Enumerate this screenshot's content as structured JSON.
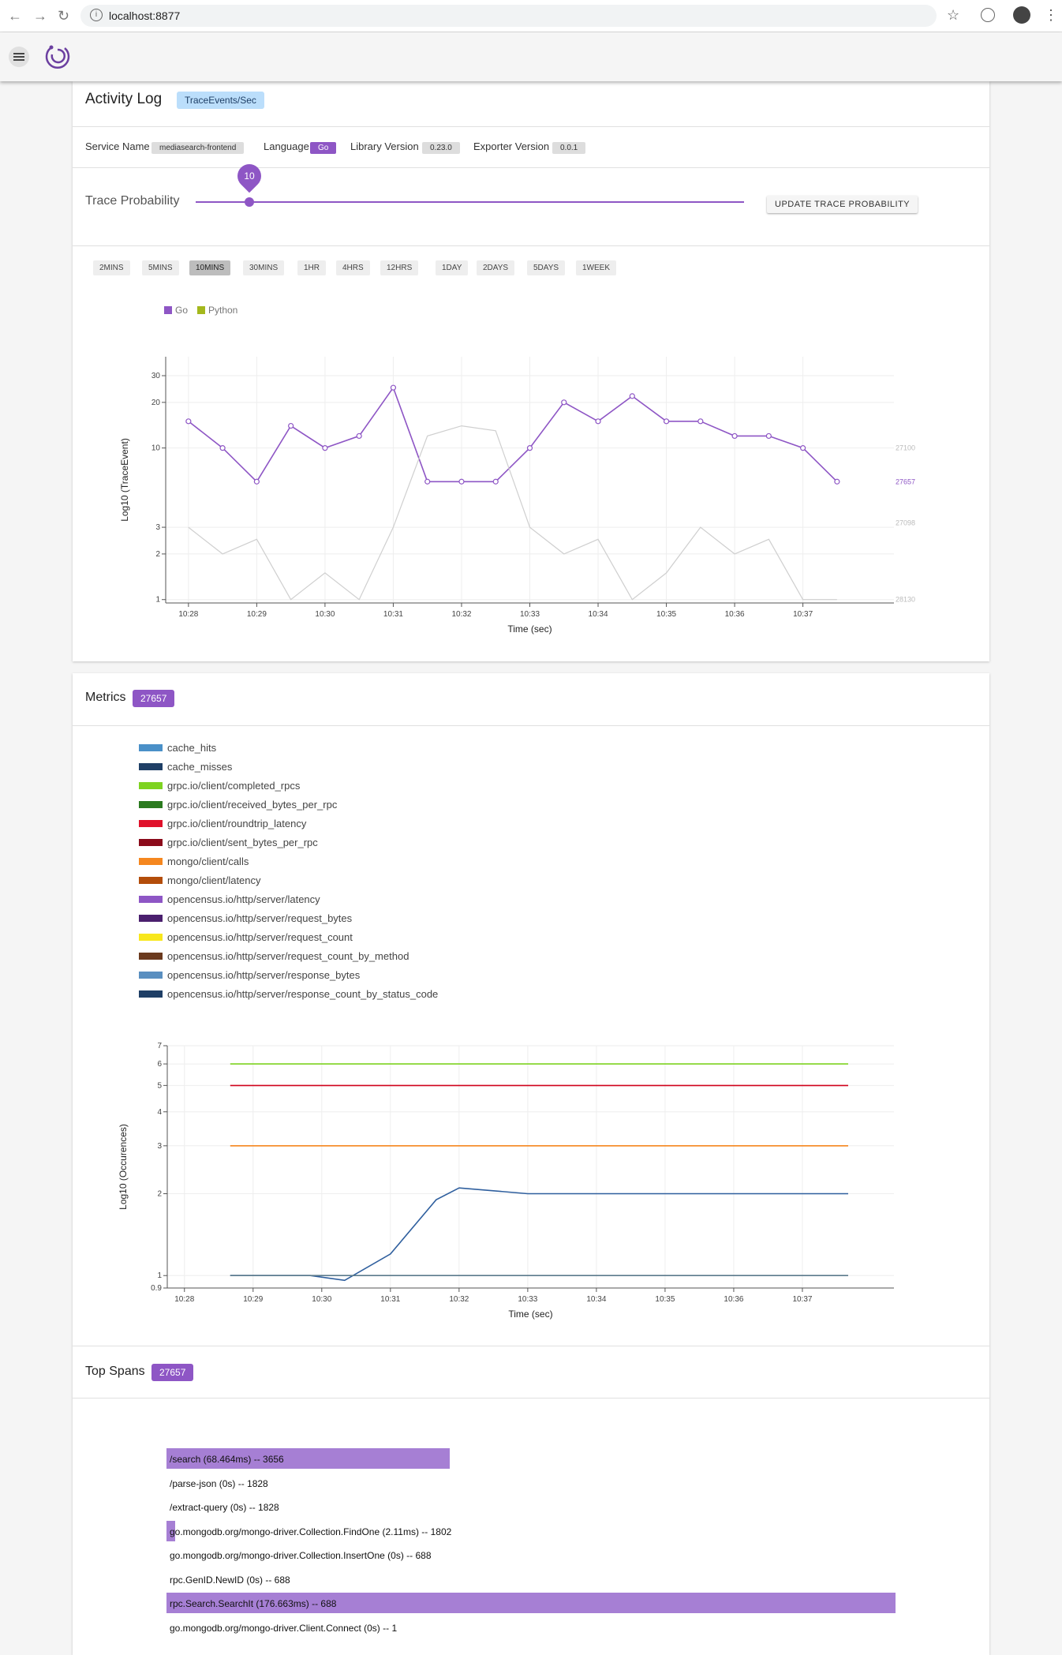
{
  "browser": {
    "url": "localhost:8877"
  },
  "activity": {
    "title": "Activity Log",
    "badge": "TraceEvents/Sec",
    "service_label": "Service Name",
    "service_value": "mediasearch-frontend",
    "language_label": "Language",
    "language_value": "Go",
    "library_label": "Library Version",
    "library_value": "0.23.0",
    "exporter_label": "Exporter Version",
    "exporter_value": "0.0.1",
    "trace_label": "Trace Probability",
    "trace_value": "10",
    "update_button": "UPDATE TRACE PROBABILITY",
    "ranges": [
      "2MINS",
      "5MINS",
      "10MINS",
      "30MINS",
      "1HR",
      "4HRS",
      "12HRS",
      "1DAY",
      "2DAYS",
      "5DAYS",
      "1WEEK"
    ],
    "selected_range": "10MINS",
    "legend": [
      {
        "name": "Go",
        "color": "#8e56c5"
      },
      {
        "name": "Python",
        "color": "#a4b81c"
      }
    ]
  },
  "chart_data": [
    {
      "type": "line",
      "xlabel": "Time (sec)",
      "ylabel": "Log10 (TraceEvent)",
      "y_scale": "log",
      "ylim": [
        0.95,
        40
      ],
      "x_ticks": [
        "10:28",
        "10:29",
        "10:30",
        "10:31",
        "10:32",
        "10:33",
        "10:34",
        "10:35",
        "10:36",
        "10:37"
      ],
      "y_ticks": [
        "1",
        "2",
        "3",
        "10",
        "20",
        "30"
      ],
      "end_labels": [
        "27100",
        "27657",
        "27098",
        "28130"
      ],
      "series": [
        {
          "name": "Go",
          "color": "#8e56c5",
          "x": [
            "10:28:00",
            "10:28:30",
            "10:29:00",
            "10:29:30",
            "10:30:00",
            "10:30:30",
            "10:31:00",
            "10:31:30",
            "10:32:00",
            "10:32:30",
            "10:33:00",
            "10:33:30",
            "10:34:00",
            "10:34:30",
            "10:35:00",
            "10:35:30",
            "10:36:00",
            "10:36:30",
            "10:37:00",
            "10:37:30"
          ],
          "values": [
            15,
            10,
            6,
            14,
            10,
            12,
            25,
            6,
            6,
            6,
            10,
            20,
            15,
            22,
            15,
            15,
            12,
            12,
            10,
            6
          ]
        },
        {
          "color": "#cfcfcf",
          "x": [
            "10:28:00",
            "10:28:30",
            "10:29:00",
            "10:29:30",
            "10:30:00",
            "10:30:30",
            "10:31:00",
            "10:31:30",
            "10:32:00",
            "10:32:30",
            "10:33:00",
            "10:33:30",
            "10:34:00",
            "10:34:30",
            "10:35:00",
            "10:35:30",
            "10:36:00",
            "10:36:30",
            "10:37:00",
            "10:37:30"
          ],
          "values": [
            3,
            2,
            2.5,
            1,
            1.5,
            1,
            3,
            12,
            14,
            13,
            3,
            2,
            2.5,
            1,
            1.5,
            3,
            2,
            2.5,
            1,
            1
          ]
        }
      ]
    },
    {
      "type": "line",
      "xlabel": "Time (sec)",
      "ylabel": "Log10 (Occurences)",
      "y_scale": "log",
      "ylim": [
        0.9,
        7
      ],
      "x_ticks": [
        "10:28",
        "10:29",
        "10:30",
        "10:31",
        "10:32",
        "10:33",
        "10:34",
        "10:35",
        "10:36",
        "10:37"
      ],
      "y_ticks": [
        "0.9",
        "1",
        "2",
        "3",
        "4",
        "5",
        "6",
        "7"
      ],
      "series": [
        {
          "color": "#7ed321",
          "x": [
            "10:28:40",
            "10:37:40"
          ],
          "values": [
            6,
            6
          ]
        },
        {
          "color": "#d0021b",
          "x": [
            "10:28:40",
            "10:37:40"
          ],
          "values": [
            5,
            5
          ]
        },
        {
          "color": "#f5871f",
          "x": [
            "10:28:40",
            "10:37:40"
          ],
          "values": [
            3,
            3
          ]
        },
        {
          "color": "#2f5f9e",
          "x": [
            "10:28:40",
            "10:29:50",
            "10:30:20",
            "10:31:00",
            "10:31:40",
            "10:32:00",
            "10:32:30",
            "10:33:00",
            "10:37:40"
          ],
          "values": [
            1,
            1,
            0.96,
            1.2,
            1.9,
            2.1,
            2.05,
            2,
            2
          ]
        },
        {
          "color": "#5b7a8c",
          "x": [
            "10:28:40",
            "10:37:40"
          ],
          "values": [
            1,
            1
          ]
        }
      ]
    }
  ],
  "metrics": {
    "title": "Metrics",
    "badge": "27657",
    "legend": [
      {
        "name": "cache_hits",
        "color": "#4a90c8"
      },
      {
        "name": "cache_misses",
        "color": "#1f3f66"
      },
      {
        "name": "grpc.io/client/completed_rpcs",
        "color": "#7ed321"
      },
      {
        "name": "grpc.io/client/received_bytes_per_rpc",
        "color": "#2b7a1f"
      },
      {
        "name": "grpc.io/client/roundtrip_latency",
        "color": "#e0112b"
      },
      {
        "name": "grpc.io/client/sent_bytes_per_rpc",
        "color": "#8b0a1a"
      },
      {
        "name": "mongo/client/calls",
        "color": "#f5871f"
      },
      {
        "name": "mongo/client/latency",
        "color": "#b34d0a"
      },
      {
        "name": "opencensus.io/http/server/latency",
        "color": "#8e56c5"
      },
      {
        "name": "opencensus.io/http/server/request_bytes",
        "color": "#4a1f6e"
      },
      {
        "name": "opencensus.io/http/server/request_count",
        "color": "#f8e71c"
      },
      {
        "name": "opencensus.io/http/server/request_count_by_method",
        "color": "#6b3a1e"
      },
      {
        "name": "opencensus.io/http/server/response_bytes",
        "color": "#5a8fc0"
      },
      {
        "name": "opencensus.io/http/server/response_count_by_status_code",
        "color": "#1f3f66"
      }
    ]
  },
  "spans": {
    "title": "Top Spans",
    "badge": "27657",
    "items": [
      {
        "label": "/search (68.464ms) -- 3656",
        "fraction": 0.388
      },
      {
        "label": "/parse-json (0s) -- 1828",
        "fraction": 0
      },
      {
        "label": "/extract-query (0s) -- 1828",
        "fraction": 0
      },
      {
        "label": "go.mongodb.org/mongo-driver.Collection.FindOne (2.11ms) -- 1802",
        "fraction": 0.012
      },
      {
        "label": "go.mongodb.org/mongo-driver.Collection.InsertOne (0s) -- 688",
        "fraction": 0
      },
      {
        "label": "rpc.GenID.NewID (0s) -- 688",
        "fraction": 0
      },
      {
        "label": "rpc.Search.SearchIt (176.663ms) -- 688",
        "fraction": 1.0
      },
      {
        "label": "go.mongodb.org/mongo-driver.Client.Connect (0s) -- 1",
        "fraction": 0
      }
    ]
  }
}
